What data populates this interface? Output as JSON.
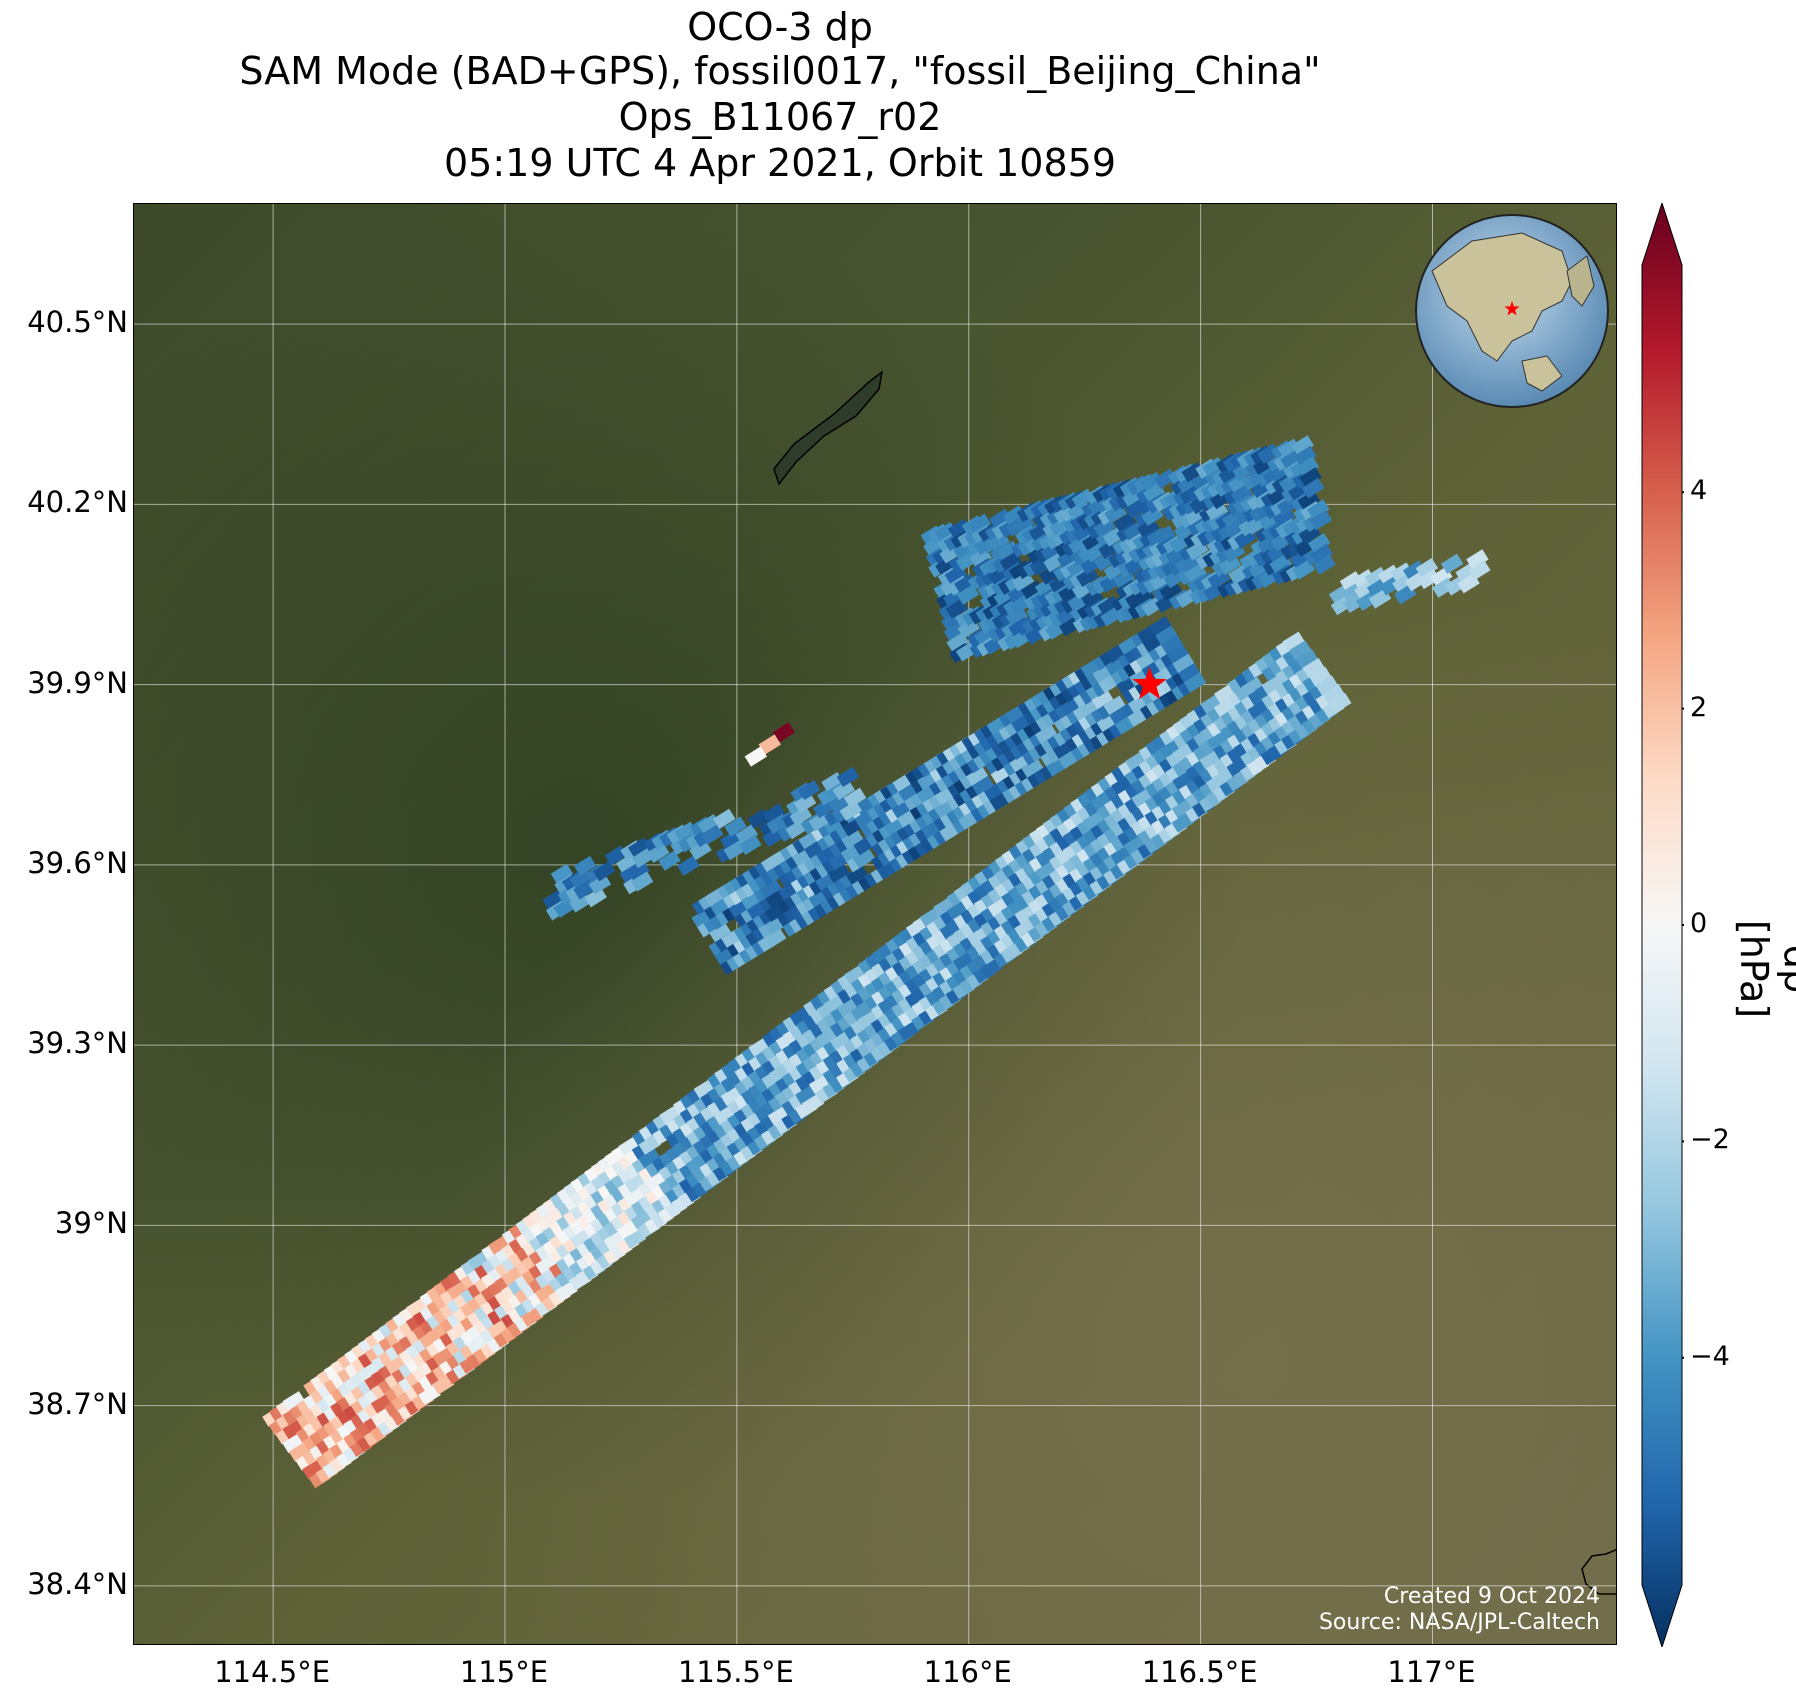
{
  "title": {
    "line1": "OCO-3 dp",
    "line2": "SAM Mode (BAD+GPS), fossil0017, \"fossil_Beijing_China\"",
    "line3": "Ops_B11067_r02",
    "line4": "05:19 UTC 4 Apr 2021, Orbit 10859"
  },
  "map": {
    "lon_range": [
      114.2,
      117.4
    ],
    "lat_range": [
      38.3,
      40.7
    ],
    "lat_ticks": [
      {
        "value": 40.5,
        "label": "40.5°N"
      },
      {
        "value": 40.2,
        "label": "40.2°N"
      },
      {
        "value": 39.9,
        "label": "39.9°N"
      },
      {
        "value": 39.6,
        "label": "39.6°N"
      },
      {
        "value": 39.3,
        "label": "39.3°N"
      },
      {
        "value": 39.0,
        "label": "39°N"
      },
      {
        "value": 38.7,
        "label": "38.7°N"
      },
      {
        "value": 38.4,
        "label": "38.4°N"
      }
    ],
    "lon_ticks": [
      {
        "value": 114.5,
        "label": "114.5°E"
      },
      {
        "value": 115.0,
        "label": "115°E"
      },
      {
        "value": 115.5,
        "label": "115.5°E"
      },
      {
        "value": 116.0,
        "label": "116°E"
      },
      {
        "value": 116.5,
        "label": "116.5°E"
      },
      {
        "value": 117.0,
        "label": "117°E"
      }
    ],
    "target_marker": {
      "lon": 116.39,
      "lat": 39.9,
      "symbol": "star",
      "color": "#ff0000"
    },
    "grid": true,
    "background": "satellite imagery",
    "overlay_field": "dp",
    "colormap": "RdBu_r"
  },
  "colorbar": {
    "label": "dp [hPa]",
    "min": -6.1,
    "max": 6.1,
    "ticks": [
      {
        "value": 4,
        "label": "4"
      },
      {
        "value": 2,
        "label": "2"
      },
      {
        "value": 0,
        "label": "0"
      },
      {
        "value": -2,
        "label": "−2"
      },
      {
        "value": -4,
        "label": "−4"
      }
    ]
  },
  "inset": {
    "type": "globe",
    "marker_color": "#ff0000",
    "marker": "star"
  },
  "credits": {
    "created": "Created 9 Oct 2024",
    "source": "Source: NASA/JPL-Caltech"
  }
}
